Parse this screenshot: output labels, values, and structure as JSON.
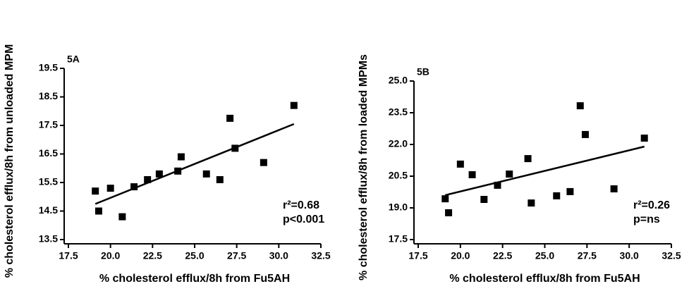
{
  "chart_data": [
    {
      "type": "scatter",
      "panel": "5A",
      "x_label": "% cholesterol efflux/8h from Fu5AH",
      "y_label": "% cholesterol efflux/8h from unloaded MPM",
      "xlim": [
        17.5,
        32.5
      ],
      "xticks": [
        17.5,
        {
          "value": 20,
          "label": "20.0"
        },
        22.5,
        {
          "value": 25,
          "label": "25.0"
        },
        27.5,
        {
          "value": 30,
          "label": "30.0"
        },
        32.5
      ],
      "ylim": [
        13.5,
        19.5
      ],
      "yticks": [
        13.5,
        14.5,
        15.5,
        16.5,
        17.5,
        18.5,
        19.5
      ],
      "color": "#000000",
      "grid": false,
      "x": [
        19.1,
        19.3,
        20.0,
        20.7,
        21.4,
        22.2,
        22.9,
        24.0,
        24.2,
        25.7,
        26.5,
        27.1,
        27.4,
        29.1,
        30.9
      ],
      "values": [
        15.2,
        14.5,
        15.3,
        14.3,
        15.35,
        15.6,
        15.8,
        15.9,
        16.4,
        15.8,
        15.6,
        17.75,
        16.7,
        16.2,
        18.2
      ],
      "trendline": {
        "x": [
          19.1,
          30.9
        ],
        "y": [
          14.75,
          17.55
        ]
      },
      "annotations": [
        "r²=0.68",
        "p<0.001"
      ]
    },
    {
      "type": "scatter",
      "panel": "5B",
      "x_label": "% cholesterol efflux/8h from Fu5AH",
      "y_label": "% cholesterol efflux/8h from loaded MPMs",
      "xlim": [
        17.5,
        32.5
      ],
      "xticks": [
        17.5,
        {
          "value": 20,
          "label": "20.0"
        },
        22.5,
        {
          "value": 25,
          "label": "25.0"
        },
        27.5,
        {
          "value": 30,
          "label": "30.0"
        },
        32.5
      ],
      "ylim": [
        17.5,
        25
      ],
      "yticks": [
        17.5,
        {
          "value": 19,
          "label": "19.0"
        },
        20.5,
        {
          "value": 22,
          "label": "22.0"
        },
        23.5,
        {
          "value": 25,
          "label": "25.0"
        }
      ],
      "color": "#000000",
      "grid": false,
      "x": [
        19.1,
        19.3,
        20.0,
        20.7,
        21.4,
        22.2,
        22.9,
        24.0,
        24.2,
        25.7,
        26.5,
        27.1,
        27.4,
        29.1,
        30.9
      ],
      "values": [
        19.43,
        18.77,
        21.07,
        20.57,
        19.4,
        20.07,
        20.6,
        21.33,
        19.23,
        19.57,
        19.77,
        23.83,
        22.47,
        19.9,
        22.3
      ],
      "trendline": {
        "x": [
          19.1,
          30.9
        ],
        "y": [
          19.6,
          21.9
        ]
      },
      "annotations": [
        "r²=0.26",
        "p=ns"
      ]
    }
  ]
}
